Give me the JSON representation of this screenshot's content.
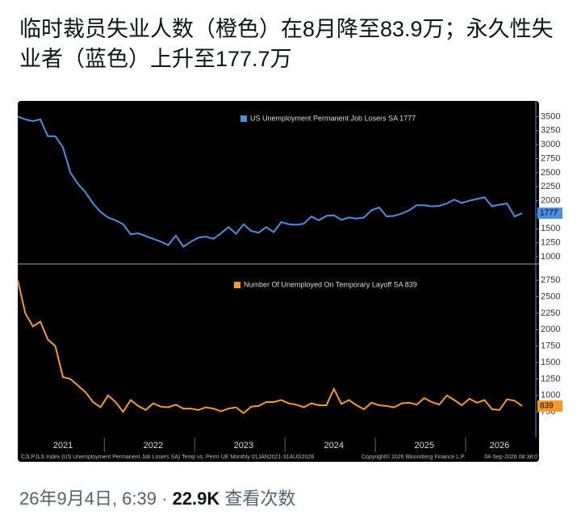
{
  "tweet": {
    "text": "临时裁员失业人数（橙色）在8月降至83.9万；永久性失业者（蓝色）上升至177.7万",
    "timestamp": "26年9月4日, 6:39",
    "separator": "·",
    "views": "22.9K",
    "views_label": "查看次数"
  },
  "chart_footer": {
    "left": "CJLPJLS Index (US Unemployment Permanent Job Losers SA) Temp vs. Perm UE Monthly 01JAN2021-31AUG2026",
    "middle": "Copyright© 2026 Bloomberg Finance L.P.",
    "right": "04-Sep-2026 08:38:0"
  },
  "chart_data": [
    {
      "type": "line",
      "series": [
        {
          "name": "US Unemployment Permanent Job Losers SA 1777",
          "color": "#4a90e2",
          "values": [
            3500,
            3450,
            3420,
            3450,
            3150,
            3150,
            2950,
            2500,
            2300,
            2150,
            1950,
            1800,
            1700,
            1650,
            1580,
            1400,
            1420,
            1370,
            1320,
            1270,
            1210,
            1380,
            1180,
            1270,
            1340,
            1360,
            1320,
            1420,
            1530,
            1410,
            1580,
            1460,
            1430,
            1530,
            1440,
            1620,
            1580,
            1570,
            1590,
            1720,
            1650,
            1730,
            1740,
            1660,
            1700,
            1680,
            1700,
            1830,
            1880,
            1720,
            1730,
            1770,
            1830,
            1920,
            1920,
            1900,
            1910,
            1950,
            2020,
            1960,
            2000,
            2030,
            2060,
            1900,
            1930,
            1950,
            1720,
            1777
          ]
        }
      ],
      "ylim": [
        900,
        3780
      ],
      "yticks": [
        1000,
        1250,
        1500,
        1750,
        2000,
        2250,
        2500,
        2750,
        3000,
        3250,
        3500
      ]
    },
    {
      "type": "line",
      "categories": [
        null,
        null,
        null,
        null,
        null,
        null,
        "2021",
        null,
        null,
        null,
        null,
        null,
        null,
        null,
        null,
        null,
        null,
        null,
        "2022",
        null,
        null,
        null,
        null,
        null,
        null,
        null,
        null,
        null,
        null,
        null,
        "2023",
        null,
        null,
        null,
        null,
        null,
        null,
        null,
        null,
        null,
        null,
        null,
        "2024",
        null,
        null,
        null,
        null,
        null,
        null,
        null,
        null,
        null,
        null,
        null,
        "2025",
        null,
        null,
        null,
        null,
        null,
        null,
        null,
        null,
        null,
        "2026",
        null,
        null,
        null
      ],
      "series": [
        {
          "name": "Number Of Unemployed On Temporary Layoff SA 839",
          "color": "#f39c1f",
          "values": [
            2750,
            2250,
            2050,
            2120,
            1850,
            1750,
            1280,
            1250,
            1150,
            1050,
            900,
            820,
            1000,
            900,
            750,
            930,
            840,
            780,
            880,
            830,
            820,
            860,
            800,
            800,
            780,
            820,
            800,
            760,
            800,
            820,
            730,
            830,
            840,
            900,
            900,
            930,
            880,
            860,
            820,
            880,
            850,
            850,
            1100,
            870,
            930,
            850,
            790,
            890,
            850,
            840,
            820,
            880,
            890,
            860,
            960,
            900,
            860,
            1000,
            930,
            850,
            950,
            890,
            930,
            790,
            780,
            940,
            920,
            839
          ]
        }
      ],
      "ylim": [
        360,
        2960
      ],
      "yticks": [
        750,
        1000,
        1250,
        1500,
        1750,
        2000,
        2250,
        2500,
        2750
      ]
    }
  ]
}
